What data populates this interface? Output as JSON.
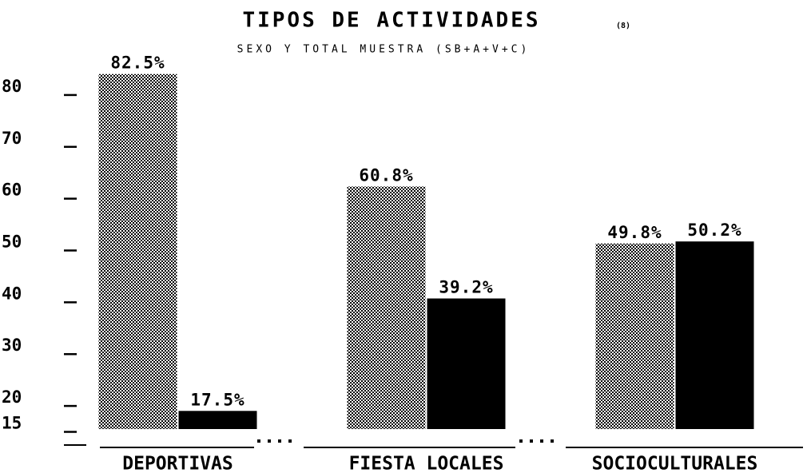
{
  "chart_data": {
    "type": "bar",
    "title": "TIPOS DE ACTIVIDADES",
    "title_note": "(8)",
    "subtitle": "SEXO Y TOTAL MUESTRA (SB+A+V+C)",
    "categories": [
      "DEPORTIVAS",
      "FIESTA LOCALES",
      "SOCIOCULTURALES"
    ],
    "series": [
      {
        "color": "#6a6a6a",
        "values": [
          82.5,
          60.8,
          49.8
        ],
        "value_labels": [
          "82.5%",
          "60.8%",
          "49.8%"
        ]
      },
      {
        "color": "#000000",
        "values": [
          17.5,
          39.2,
          50.2
        ],
        "value_labels": [
          "17.5%",
          "39.2%",
          "50.2%"
        ]
      }
    ],
    "ylim": [
      14,
      86
    ],
    "yticks": [
      15,
      20,
      30,
      40,
      50,
      60,
      70,
      80
    ]
  }
}
